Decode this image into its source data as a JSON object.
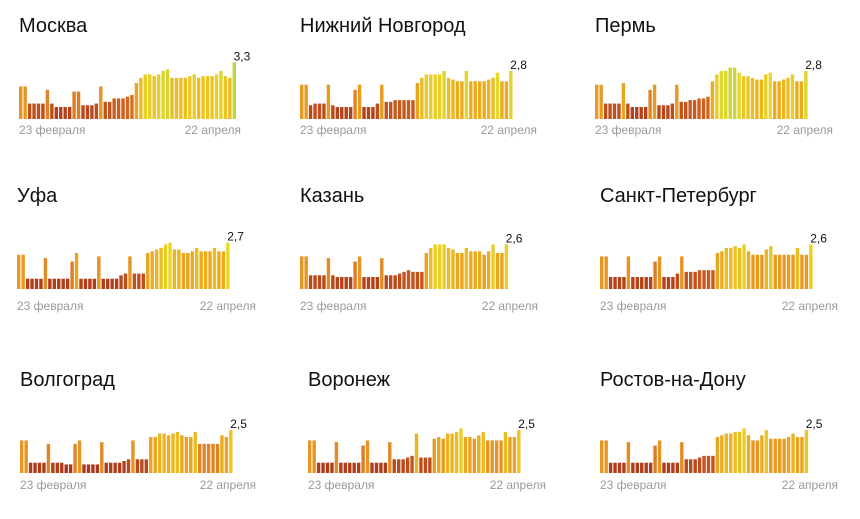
{
  "chart_data": [
    {
      "type": "bar",
      "city": "Москва",
      "last_value": "3,3",
      "x_start_label": "23 февраля",
      "x_end_label": "22 апреля",
      "ylim": [
        0,
        3.5
      ],
      "values": [
        1.9,
        1.9,
        0.9,
        0.9,
        0.9,
        0.9,
        1.7,
        0.9,
        0.7,
        0.7,
        0.7,
        0.7,
        1.6,
        1.6,
        0.8,
        0.8,
        0.8,
        0.9,
        1.9,
        1.0,
        1.0,
        1.2,
        1.2,
        1.2,
        1.3,
        1.4,
        2.1,
        2.4,
        2.6,
        2.6,
        2.5,
        2.6,
        2.8,
        2.9,
        2.4,
        2.4,
        2.4,
        2.4,
        2.5,
        2.6,
        2.4,
        2.5,
        2.5,
        2.5,
        2.6,
        2.8,
        2.5,
        2.4,
        3.3
      ]
    },
    {
      "type": "bar",
      "city": "Нижний Новгород",
      "last_value": "2,8",
      "x_start_label": "23 февраля",
      "x_end_label": "22 апреля",
      "ylim": [
        0,
        3.5
      ],
      "values": [
        2.0,
        2.0,
        0.8,
        0.9,
        0.9,
        0.9,
        2.0,
        0.8,
        0.7,
        0.7,
        0.7,
        0.7,
        1.7,
        2.0,
        0.7,
        0.7,
        0.7,
        0.9,
        2.0,
        1.0,
        1.0,
        1.1,
        1.1,
        1.1,
        1.1,
        1.1,
        2.1,
        2.4,
        2.6,
        2.6,
        2.6,
        2.6,
        2.8,
        2.4,
        2.3,
        2.2,
        2.2,
        2.8,
        2.2,
        2.2,
        2.2,
        2.2,
        2.3,
        2.4,
        2.7,
        2.2,
        2.2,
        2.8
      ]
    },
    {
      "type": "bar",
      "city": "Пермь",
      "last_value": "2,8",
      "x_start_label": "23 февраля",
      "x_end_label": "22 апреля",
      "ylim": [
        0,
        3.5
      ],
      "values": [
        2.0,
        2.0,
        0.9,
        0.9,
        0.9,
        0.9,
        2.1,
        0.9,
        0.7,
        0.7,
        0.7,
        0.7,
        1.7,
        2.0,
        0.8,
        0.8,
        0.8,
        0.9,
        2.0,
        1.0,
        1.0,
        1.1,
        1.1,
        1.2,
        1.2,
        1.3,
        2.2,
        2.6,
        2.8,
        2.8,
        3.0,
        3.0,
        2.7,
        2.5,
        2.5,
        2.4,
        2.3,
        2.3,
        2.6,
        2.7,
        2.2,
        2.2,
        2.3,
        2.4,
        2.6,
        2.2,
        2.2,
        2.8
      ]
    },
    {
      "type": "bar",
      "city": "Уфа",
      "last_value": "2,7",
      "x_start_label": "23 февраля",
      "x_end_label": "22 апреля",
      "ylim": [
        0,
        3.5
      ],
      "values": [
        2.0,
        2.0,
        0.6,
        0.6,
        0.6,
        0.6,
        1.8,
        0.6,
        0.6,
        0.6,
        0.6,
        0.6,
        1.6,
        2.1,
        0.6,
        0.6,
        0.6,
        0.6,
        1.9,
        0.6,
        0.6,
        0.6,
        0.6,
        0.8,
        0.9,
        1.9,
        0.9,
        0.9,
        0.9,
        2.1,
        2.2,
        2.3,
        2.4,
        2.6,
        2.7,
        2.3,
        2.3,
        2.1,
        2.1,
        2.2,
        2.4,
        2.2,
        2.2,
        2.2,
        2.4,
        2.2,
        2.2,
        2.7
      ]
    },
    {
      "type": "bar",
      "city": "Казань",
      "last_value": "2,6",
      "x_start_label": "23 февраля",
      "x_end_label": "22 апреля",
      "ylim": [
        0,
        3.5
      ],
      "values": [
        1.9,
        1.9,
        0.8,
        0.8,
        0.8,
        0.8,
        1.8,
        0.8,
        0.7,
        0.7,
        0.7,
        0.7,
        1.6,
        1.9,
        0.7,
        0.7,
        0.7,
        0.7,
        1.8,
        0.8,
        0.8,
        0.8,
        0.9,
        1.0,
        1.1,
        1.0,
        1.0,
        1.0,
        2.1,
        2.4,
        2.6,
        2.6,
        2.6,
        2.4,
        2.3,
        2.1,
        2.1,
        2.4,
        2.2,
        2.2,
        2.2,
        2.0,
        2.2,
        2.6,
        2.1,
        2.1,
        2.6
      ]
    },
    {
      "type": "bar",
      "city": "Санкт-Петербург",
      "last_value": "2,6",
      "x_start_label": "23 февраля",
      "x_end_label": "22 апреля",
      "ylim": [
        0,
        3.5
      ],
      "values": [
        1.9,
        1.9,
        0.7,
        0.7,
        0.7,
        0.7,
        1.9,
        0.7,
        0.7,
        0.7,
        0.7,
        0.7,
        1.6,
        1.9,
        0.7,
        0.7,
        0.7,
        0.9,
        1.9,
        1.0,
        1.0,
        1.0,
        1.1,
        1.1,
        1.1,
        1.1,
        2.1,
        2.2,
        2.4,
        2.4,
        2.5,
        2.4,
        2.6,
        2.2,
        2.0,
        2.0,
        2.0,
        2.3,
        2.5,
        2.0,
        2.0,
        2.0,
        2.0,
        2.0,
        2.4,
        2.0,
        2.0,
        2.6
      ]
    },
    {
      "type": "bar",
      "city": "Волгоград",
      "last_value": "2,5",
      "x_start_label": "23 февраля",
      "x_end_label": "22 апреля",
      "ylim": [
        0,
        3.5
      ],
      "values": [
        1.9,
        1.9,
        0.6,
        0.6,
        0.6,
        0.6,
        1.7,
        0.6,
        0.6,
        0.6,
        0.5,
        0.5,
        1.7,
        1.9,
        0.5,
        0.5,
        0.5,
        0.5,
        1.8,
        0.6,
        0.6,
        0.6,
        0.6,
        0.7,
        0.8,
        1.9,
        0.8,
        0.8,
        0.8,
        2.1,
        2.1,
        2.3,
        2.3,
        2.2,
        2.3,
        2.4,
        2.2,
        2.1,
        2.1,
        2.4,
        1.7,
        1.7,
        1.7,
        1.7,
        1.7,
        2.2,
        2.1,
        2.5
      ]
    },
    {
      "type": "bar",
      "city": "Воронеж",
      "last_value": "2,5",
      "x_start_label": "23 февраля",
      "x_end_label": "22 апреля",
      "ylim": [
        0,
        3.5
      ],
      "values": [
        1.9,
        1.9,
        0.6,
        0.6,
        0.6,
        0.6,
        1.8,
        0.6,
        0.6,
        0.6,
        0.6,
        0.6,
        1.6,
        1.9,
        0.6,
        0.6,
        0.6,
        0.6,
        1.8,
        0.8,
        0.8,
        0.8,
        0.9,
        1.0,
        2.3,
        0.9,
        0.9,
        0.9,
        2.0,
        2.1,
        2.0,
        2.3,
        2.3,
        2.4,
        2.6,
        2.1,
        2.1,
        2.0,
        2.2,
        2.4,
        1.9,
        1.9,
        1.9,
        1.9,
        2.4,
        2.1,
        2.1,
        2.5
      ]
    },
    {
      "type": "bar",
      "city": "Ростов-на-Дону",
      "last_value": "2,5",
      "x_start_label": "23 февраля",
      "x_end_label": "22 апреля",
      "ylim": [
        0,
        3.5
      ],
      "values": [
        1.9,
        1.9,
        0.6,
        0.6,
        0.6,
        0.6,
        1.8,
        0.6,
        0.6,
        0.6,
        0.6,
        0.6,
        1.6,
        1.9,
        0.6,
        0.6,
        0.6,
        0.6,
        1.8,
        0.8,
        0.8,
        0.8,
        0.9,
        1.0,
        1.0,
        1.0,
        2.1,
        2.2,
        2.3,
        2.3,
        2.4,
        2.4,
        2.6,
        2.2,
        1.9,
        1.9,
        2.2,
        2.5,
        2.0,
        2.0,
        2.0,
        2.0,
        2.1,
        2.3,
        2.1,
        2.1,
        2.5
      ]
    }
  ]
}
